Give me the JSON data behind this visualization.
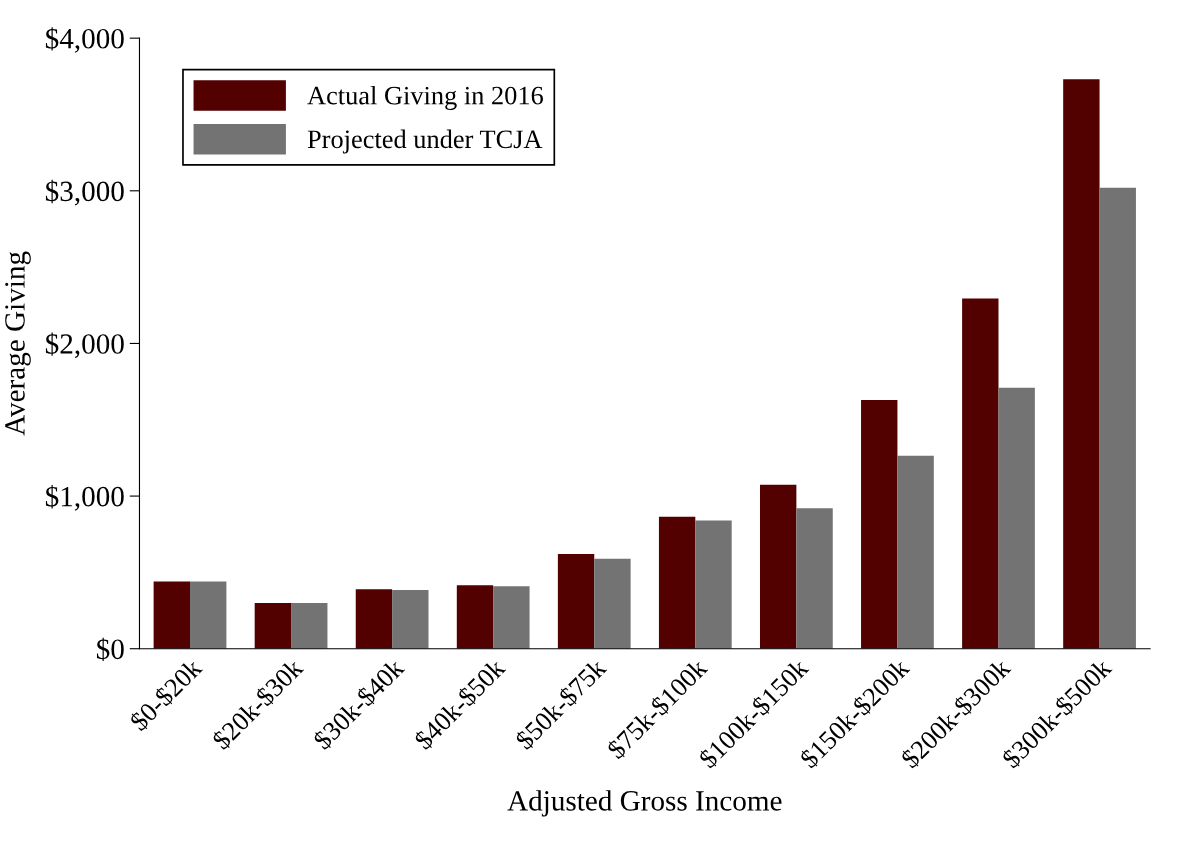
{
  "chart_data": {
    "type": "bar",
    "xlabel": "Adjusted Gross Income",
    "ylabel": "Average Giving",
    "categories": [
      "$0-$20k",
      "$20k-$30k",
      "$30k-$40k",
      "$40k-$50k",
      "$50k-$75k",
      "$75k-$100k",
      "$100k-$150k",
      "$150k-$200k",
      "$200k-$300k",
      "$300k-$500k"
    ],
    "series": [
      {
        "name": "Actual Giving in 2016",
        "color": "#520000",
        "values": [
          440,
          300,
          390,
          415,
          620,
          865,
          1075,
          1630,
          2295,
          3730
        ]
      },
      {
        "name": "Projected under TCJA",
        "color": "#737373",
        "values": [
          440,
          300,
          385,
          410,
          590,
          840,
          920,
          1265,
          1710,
          3020
        ]
      }
    ],
    "ylim": [
      0,
      4000
    ],
    "yticks": [
      {
        "value": 0,
        "label": "$0"
      },
      {
        "value": 1000,
        "label": "$1,000"
      },
      {
        "value": 2000,
        "label": "$2,000"
      },
      {
        "value": 3000,
        "label": "$3,000"
      },
      {
        "value": 4000,
        "label": "$4,000"
      }
    ],
    "legend": "top left",
    "grid": false
  }
}
